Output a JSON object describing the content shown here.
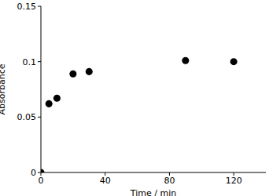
{
  "chart_data": {
    "type": "scatter",
    "x": [
      0,
      5,
      10,
      20,
      30,
      90,
      120
    ],
    "values": [
      0,
      0.062,
      0.067,
      0.089,
      0.091,
      0.101,
      0.1
    ],
    "color": "#000000",
    "marker": "circle",
    "x_label": "Time / min",
    "y_label": "Absorbance",
    "xlim": [
      0,
      140
    ],
    "xticks": [
      0,
      40,
      80,
      120
    ],
    "ylim": [
      0,
      0.15
    ],
    "yticks": [
      0,
      0.05,
      0.1,
      0.15
    ]
  }
}
